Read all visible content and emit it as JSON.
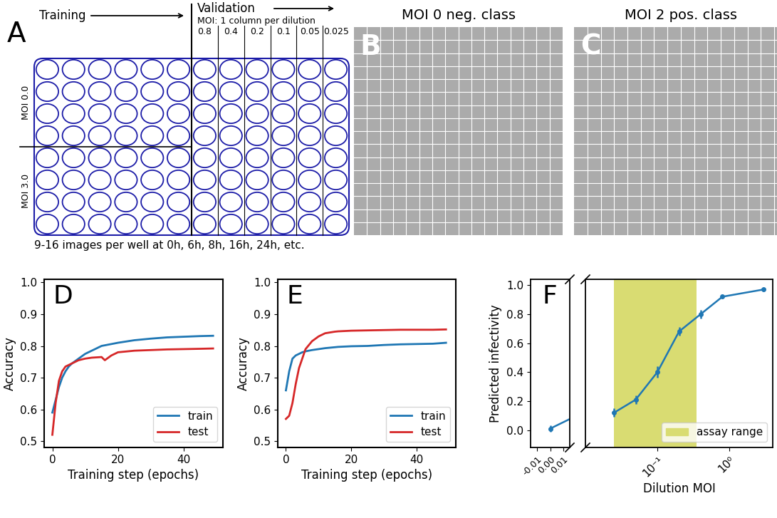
{
  "plate": {
    "panel": "A",
    "training": "Training",
    "validation": "Validation",
    "validation_note": "MOI: 1 column per dilution",
    "dilutions": [
      "0.8",
      "0.4",
      "0.2",
      "0.1",
      "0.05",
      "0.025"
    ],
    "row_labels": [
      "MOI 0.0",
      "MOI 3.0"
    ],
    "rows": 8,
    "columns": 12,
    "training_columns": 6,
    "footnote": "9-16 images per well at 0h, 6h, 8h, 16h, 24h, etc.",
    "color": "#1c1ca8"
  },
  "images": [
    {
      "panel": "B",
      "title": "MOI 0 neg. class"
    },
    {
      "panel": "C",
      "title": "MOI 2 pos. class"
    }
  ],
  "chart_data": [
    {
      "type": "line",
      "panel": "D",
      "xlabel": "Training step (epochs)",
      "ylabel": "Accuracy",
      "x": [
        0,
        1,
        2,
        3,
        4,
        5,
        6,
        8,
        10,
        12,
        15,
        16,
        18,
        20,
        25,
        30,
        35,
        40,
        45,
        49
      ],
      "series": [
        {
          "name": "train",
          "color": "#1f77b4",
          "values": [
            0.59,
            0.63,
            0.67,
            0.7,
            0.72,
            0.735,
            0.745,
            0.76,
            0.775,
            0.785,
            0.8,
            0.802,
            0.806,
            0.81,
            0.818,
            0.823,
            0.827,
            0.829,
            0.831,
            0.832
          ]
        },
        {
          "name": "test",
          "color": "#d62728",
          "values": [
            0.52,
            0.62,
            0.69,
            0.72,
            0.735,
            0.74,
            0.745,
            0.755,
            0.76,
            0.763,
            0.765,
            0.755,
            0.77,
            0.78,
            0.785,
            0.787,
            0.789,
            0.79,
            0.791,
            0.792
          ]
        }
      ],
      "xlim": [
        -2.5,
        52
      ],
      "xticks": [
        0,
        20,
        40
      ],
      "ylim": [
        0.48,
        1.01
      ],
      "yticks": [
        0.5,
        0.6,
        0.7,
        0.8,
        0.9,
        {
          "value": 1.0,
          "label": "1.0"
        }
      ],
      "legend": "lower right"
    },
    {
      "type": "line",
      "panel": "E",
      "xlabel": "Training step (epochs)",
      "ylabel": "Accuracy",
      "x": [
        0,
        1,
        2,
        3,
        4,
        5,
        6,
        8,
        10,
        12,
        15,
        16,
        18,
        20,
        25,
        30,
        35,
        40,
        45,
        49
      ],
      "series": [
        {
          "name": "train",
          "color": "#1f77b4",
          "values": [
            0.66,
            0.72,
            0.76,
            0.77,
            0.775,
            0.78,
            0.783,
            0.787,
            0.79,
            0.793,
            0.796,
            0.797,
            0.798,
            0.799,
            0.8,
            0.803,
            0.805,
            0.806,
            0.807,
            0.81
          ]
        },
        {
          "name": "test",
          "color": "#d62728",
          "values": [
            0.57,
            0.58,
            0.62,
            0.68,
            0.73,
            0.76,
            0.79,
            0.815,
            0.83,
            0.84,
            0.845,
            0.846,
            0.847,
            0.848,
            0.849,
            0.85,
            0.851,
            0.851,
            0.851,
            0.852
          ]
        }
      ],
      "xlim": [
        -2.5,
        52
      ],
      "xticks": [
        0,
        20,
        40
      ],
      "ylim": [
        0.48,
        1.01
      ],
      "yticks": [
        0.5,
        0.6,
        0.7,
        0.8,
        0.9,
        {
          "value": 1.0,
          "label": "1.0"
        }
      ],
      "legend": "lower right"
    },
    {
      "type": "errorbar",
      "panel": "F",
      "xlabel": "Dilution MOI",
      "ylabel": "Predicted infectivity",
      "log": "x",
      "color": "#1f77b4",
      "marker": "o",
      "x": [
        0,
        0.025,
        0.05,
        0.1,
        0.2,
        0.4,
        0.8,
        3.0
      ],
      "values": [
        0.01,
        0.12,
        0.21,
        0.4,
        0.68,
        0.8,
        0.92,
        0.97
      ],
      "errors": [
        0.02,
        0.03,
        0.03,
        0.04,
        0.03,
        0.03,
        0.01,
        0.01
      ],
      "xlim_zero": [
        -0.015,
        0.015
      ],
      "xticks_zero": [
        {
          "value": -0.01,
          "label": "-0.01"
        },
        {
          "value": 0.0,
          "label": "0.00"
        },
        {
          "value": 0.01,
          "label": "0.01"
        }
      ],
      "xlim": [
        0.01,
        4
      ],
      "xticks": [
        {
          "value": 0.1,
          "label": "10⁻¹"
        },
        {
          "value": 1,
          "label": "10⁰"
        }
      ],
      "ylim": [
        -0.12,
        1.04
      ],
      "yticks": [
        0.0,
        0.2,
        0.4,
        0.6,
        0.8,
        1.0
      ],
      "span": {
        "name": "assay range",
        "range": [
          0.025,
          0.35
        ],
        "color": "#d9dc72"
      },
      "legend": "lower right"
    }
  ]
}
